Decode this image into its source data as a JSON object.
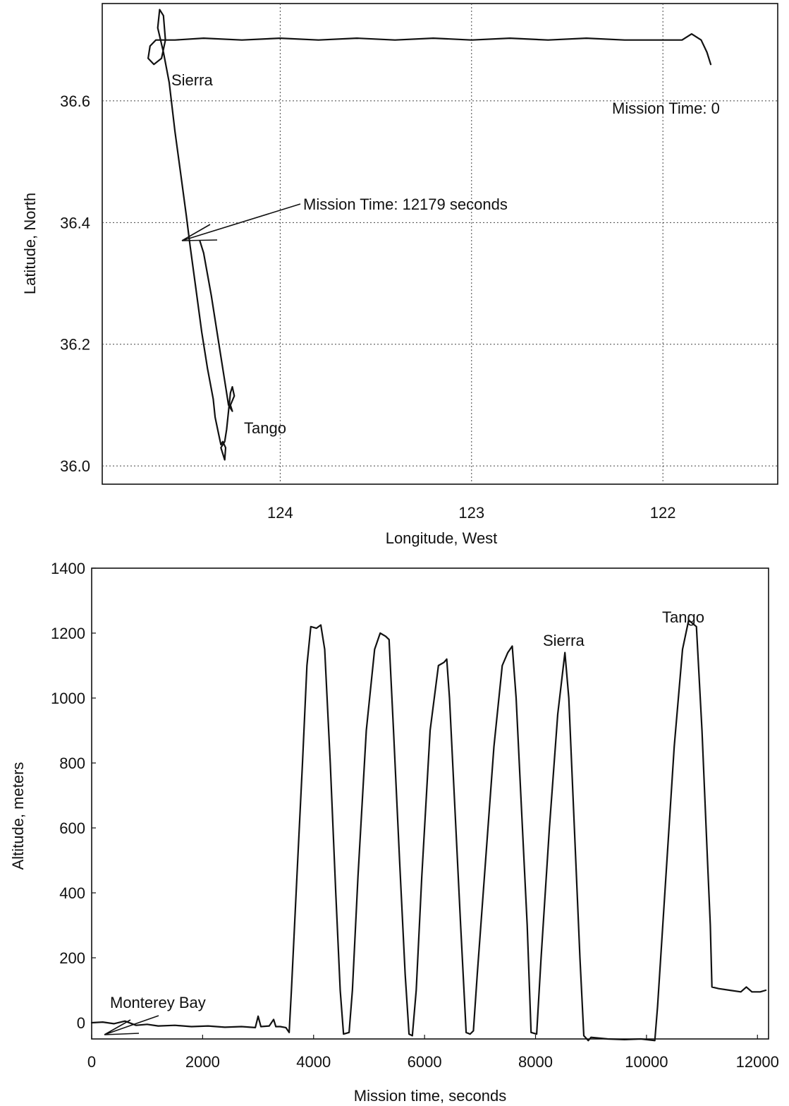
{
  "chart_data": [
    {
      "type": "line",
      "xlabel": "Longitude, West",
      "ylabel": "Latitude, North",
      "xlim": [
        124.93,
        121.4
      ],
      "ylim": [
        35.97,
        36.76
      ],
      "x_ticks": [
        124,
        123,
        122
      ],
      "x_tick_labels": [
        "124",
        "123",
        "122"
      ],
      "y_ticks": [
        36.0,
        36.2,
        36.4,
        36.6
      ],
      "y_tick_labels": [
        "36.0",
        "36.2",
        "36.4",
        "36.6"
      ],
      "grid": true,
      "annotations": {
        "sierra": "Sierra",
        "tango": "Tango",
        "mission_start": "Mission Time: 0",
        "mission_end": "Mission Time: 12179 seconds"
      },
      "series": [
        {
          "points": [
            [
              121.75,
              36.66
            ],
            [
              121.77,
              36.68
            ],
            [
              121.8,
              36.7
            ],
            [
              121.85,
              36.71
            ],
            [
              121.9,
              36.7
            ],
            [
              122.0,
              36.7
            ],
            [
              122.2,
              36.7
            ],
            [
              122.4,
              36.703
            ],
            [
              122.6,
              36.7
            ],
            [
              122.8,
              36.703
            ],
            [
              123.0,
              36.7
            ],
            [
              123.2,
              36.703
            ],
            [
              123.4,
              36.7
            ],
            [
              123.6,
              36.703
            ],
            [
              123.8,
              36.7
            ],
            [
              124.0,
              36.703
            ],
            [
              124.2,
              36.7
            ],
            [
              124.4,
              36.703
            ],
            [
              124.55,
              36.7
            ],
            [
              124.65,
              36.7
            ],
            [
              124.68,
              36.69
            ],
            [
              124.69,
              36.67
            ],
            [
              124.66,
              36.66
            ],
            [
              124.62,
              36.67
            ],
            [
              124.6,
              36.7
            ],
            [
              124.61,
              36.74
            ],
            [
              124.63,
              36.75
            ],
            [
              124.64,
              36.72
            ],
            [
              124.61,
              36.68
            ],
            [
              124.58,
              36.63
            ],
            [
              124.55,
              36.55
            ],
            [
              124.52,
              36.48
            ],
            [
              124.49,
              36.41
            ],
            [
              124.47,
              36.36
            ],
            [
              124.44,
              36.29
            ],
            [
              124.41,
              36.22
            ],
            [
              124.38,
              36.16
            ],
            [
              124.35,
              36.11
            ],
            [
              124.34,
              36.08
            ],
            [
              124.32,
              36.05
            ],
            [
              124.31,
              36.035
            ],
            [
              124.3,
              36.04
            ],
            [
              124.285,
              36.03
            ],
            [
              124.29,
              36.01
            ],
            [
              124.3,
              36.02
            ],
            [
              124.31,
              36.03
            ],
            [
              124.29,
              36.04
            ],
            [
              124.28,
              36.06
            ],
            [
              124.27,
              36.09
            ],
            [
              124.26,
              36.12
            ],
            [
              124.25,
              36.13
            ],
            [
              124.24,
              36.115
            ],
            [
              124.26,
              36.1
            ],
            [
              124.25,
              36.09
            ],
            [
              124.27,
              36.1
            ],
            [
              124.29,
              36.14
            ],
            [
              124.32,
              36.2
            ],
            [
              124.36,
              36.28
            ],
            [
              124.4,
              36.35
            ],
            [
              124.42,
              36.37
            ]
          ]
        }
      ]
    },
    {
      "type": "line",
      "xlabel": "Mission time, seconds",
      "ylabel": "Altitude, meters",
      "xlim": [
        0,
        12200
      ],
      "ylim": [
        -50,
        1400
      ],
      "x_ticks": [
        0,
        2000,
        4000,
        6000,
        8000,
        10000,
        12000
      ],
      "x_tick_labels": [
        "0",
        "2000",
        "4000",
        "6000",
        "8000",
        "10000",
        "12000"
      ],
      "y_ticks": [
        0,
        200,
        400,
        600,
        800,
        1000,
        1200,
        1400
      ],
      "y_tick_labels": [
        "0",
        "200",
        "400",
        "600",
        "800",
        "1000",
        "1200",
        "1400"
      ],
      "grid": false,
      "annotations": {
        "monterey": "Monterey Bay",
        "sierra": "Sierra",
        "tango": "Tango"
      },
      "series": [
        {
          "points": [
            [
              0,
              0
            ],
            [
              200,
              2
            ],
            [
              400,
              -3
            ],
            [
              600,
              5
            ],
            [
              800,
              -8
            ],
            [
              1000,
              -5
            ],
            [
              1200,
              -10
            ],
            [
              1500,
              -8
            ],
            [
              1800,
              -12
            ],
            [
              2100,
              -10
            ],
            [
              2400,
              -14
            ],
            [
              2700,
              -12
            ],
            [
              2950,
              -15
            ],
            [
              3000,
              20
            ],
            [
              3050,
              -12
            ],
            [
              3200,
              -10
            ],
            [
              3280,
              10
            ],
            [
              3320,
              -12
            ],
            [
              3400,
              -12
            ],
            [
              3500,
              -15
            ],
            [
              3560,
              -30
            ],
            [
              3600,
              100
            ],
            [
              3700,
              450
            ],
            [
              3800,
              800
            ],
            [
              3880,
              1100
            ],
            [
              3950,
              1220
            ],
            [
              4050,
              1215
            ],
            [
              4130,
              1225
            ],
            [
              4200,
              1150
            ],
            [
              4300,
              800
            ],
            [
              4400,
              400
            ],
            [
              4480,
              100
            ],
            [
              4540,
              -35
            ],
            [
              4640,
              -30
            ],
            [
              4700,
              100
            ],
            [
              4800,
              450
            ],
            [
              4950,
              900
            ],
            [
              5100,
              1150
            ],
            [
              5200,
              1200
            ],
            [
              5300,
              1190
            ],
            [
              5360,
              1180
            ],
            [
              5440,
              900
            ],
            [
              5550,
              500
            ],
            [
              5650,
              150
            ],
            [
              5720,
              -35
            ],
            [
              5780,
              -40
            ],
            [
              5850,
              100
            ],
            [
              5950,
              450
            ],
            [
              6100,
              900
            ],
            [
              6250,
              1100
            ],
            [
              6350,
              1110
            ],
            [
              6400,
              1120
            ],
            [
              6450,
              1000
            ],
            [
              6550,
              650
            ],
            [
              6650,
              300
            ],
            [
              6750,
              -30
            ],
            [
              6820,
              -35
            ],
            [
              6880,
              -25
            ],
            [
              6950,
              150
            ],
            [
              7100,
              500
            ],
            [
              7250,
              850
            ],
            [
              7400,
              1100
            ],
            [
              7500,
              1140
            ],
            [
              7580,
              1160
            ],
            [
              7650,
              1000
            ],
            [
              7750,
              650
            ],
            [
              7850,
              300
            ],
            [
              7920,
              -30
            ],
            [
              8020,
              -35
            ],
            [
              8100,
              200
            ],
            [
              8250,
              600
            ],
            [
              8400,
              950
            ],
            [
              8530,
              1140
            ],
            [
              8600,
              1000
            ],
            [
              8700,
              600
            ],
            [
              8800,
              200
            ],
            [
              8870,
              -40
            ],
            [
              8950,
              -55
            ],
            [
              9000,
              -45
            ],
            [
              9300,
              -50
            ],
            [
              9600,
              -52
            ],
            [
              9900,
              -50
            ],
            [
              10150,
              -55
            ],
            [
              10200,
              50
            ],
            [
              10350,
              450
            ],
            [
              10500,
              850
            ],
            [
              10650,
              1150
            ],
            [
              10760,
              1240
            ],
            [
              10900,
              1220
            ],
            [
              11000,
              900
            ],
            [
              11100,
              500
            ],
            [
              11150,
              300
            ],
            [
              11180,
              110
            ],
            [
              11300,
              105
            ],
            [
              11500,
              100
            ],
            [
              11700,
              95
            ],
            [
              11800,
              110
            ],
            [
              11900,
              95
            ],
            [
              12050,
              95
            ],
            [
              12150,
              100
            ]
          ]
        }
      ]
    }
  ]
}
